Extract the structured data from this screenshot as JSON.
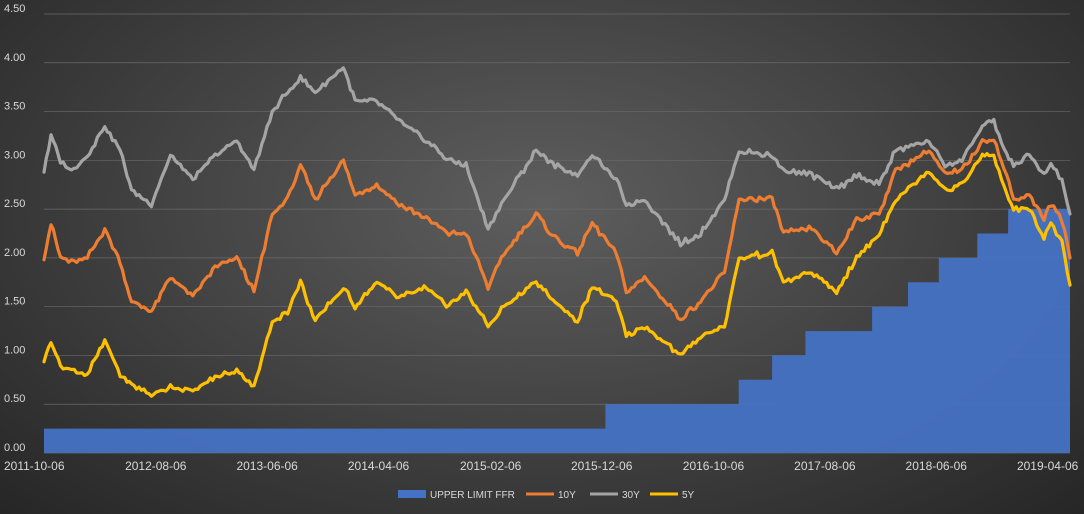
{
  "chart_data": {
    "type": "area+line",
    "title": "",
    "xlabel": "",
    "ylabel": "",
    "ylim": [
      0,
      4.5
    ],
    "yticks": [
      "0.00",
      "0.50",
      "1.00",
      "1.50",
      "2.00",
      "2.50",
      "3.00",
      "3.50",
      "4.00",
      "4.50"
    ],
    "xticks": [
      "2011-10-06",
      "2012-08-06",
      "2013-06-06",
      "2014-04-06",
      "2015-02-06",
      "2015-12-06",
      "2016-10-06",
      "2017-08-06",
      "2018-06-06",
      "2019-04-06"
    ],
    "x_start": "2011-10-06",
    "x_end": "2019-06-06",
    "grid": true,
    "legend_position": "bottom",
    "colors": {
      "ffr": "#4472c4",
      "y10": "#ed7d31",
      "y30": "#a5a5a5",
      "y5": "#ffc000",
      "text": "#d9d9d9",
      "grid": "#6a6a6a"
    },
    "series": [
      {
        "name": "UPPER LIMIT FFR",
        "type": "area",
        "color": "#4472c4",
        "points": [
          [
            "2011-10-06",
            0.25
          ],
          [
            "2015-12-16",
            0.25
          ],
          [
            "2015-12-16",
            0.5
          ],
          [
            "2016-12-14",
            0.5
          ],
          [
            "2016-12-14",
            0.75
          ],
          [
            "2017-03-15",
            0.75
          ],
          [
            "2017-03-15",
            1.0
          ],
          [
            "2017-06-14",
            1.0
          ],
          [
            "2017-06-14",
            1.25
          ],
          [
            "2017-12-13",
            1.25
          ],
          [
            "2017-12-13",
            1.5
          ],
          [
            "2018-03-21",
            1.5
          ],
          [
            "2018-03-21",
            1.75
          ],
          [
            "2018-06-13",
            1.75
          ],
          [
            "2018-06-13",
            2.0
          ],
          [
            "2018-09-26",
            2.0
          ],
          [
            "2018-09-26",
            2.25
          ],
          [
            "2018-12-19",
            2.25
          ],
          [
            "2018-12-19",
            2.5
          ],
          [
            "2019-06-06",
            2.5
          ]
        ]
      },
      {
        "name": "10Y",
        "type": "line",
        "color": "#ed7d31",
        "points": [
          [
            "2011-10-06",
            2.0
          ],
          [
            "2011-10-25",
            2.35
          ],
          [
            "2011-11-20",
            2.0
          ],
          [
            "2011-12-20",
            1.95
          ],
          [
            "2012-02-01",
            2.0
          ],
          [
            "2012-03-20",
            2.3
          ],
          [
            "2012-05-01",
            1.95
          ],
          [
            "2012-06-01",
            1.55
          ],
          [
            "2012-07-25",
            1.45
          ],
          [
            "2012-09-15",
            1.8
          ],
          [
            "2012-11-15",
            1.6
          ],
          [
            "2013-01-15",
            1.9
          ],
          [
            "2013-03-15",
            2.0
          ],
          [
            "2013-05-01",
            1.65
          ],
          [
            "2013-06-20",
            2.45
          ],
          [
            "2013-08-01",
            2.6
          ],
          [
            "2013-09-05",
            2.95
          ],
          [
            "2013-10-15",
            2.6
          ],
          [
            "2013-12-31",
            3.0
          ],
          [
            "2014-02-01",
            2.65
          ],
          [
            "2014-04-01",
            2.75
          ],
          [
            "2014-06-01",
            2.55
          ],
          [
            "2014-08-15",
            2.4
          ],
          [
            "2014-10-15",
            2.25
          ],
          [
            "2014-12-01",
            2.25
          ],
          [
            "2015-01-30",
            1.7
          ],
          [
            "2015-03-15",
            2.05
          ],
          [
            "2015-06-10",
            2.45
          ],
          [
            "2015-08-01",
            2.2
          ],
          [
            "2015-10-01",
            2.05
          ],
          [
            "2015-11-10",
            2.35
          ],
          [
            "2016-01-15",
            2.05
          ],
          [
            "2016-02-11",
            1.65
          ],
          [
            "2016-04-01",
            1.8
          ],
          [
            "2016-07-08",
            1.38
          ],
          [
            "2016-09-01",
            1.55
          ],
          [
            "2016-11-05",
            1.85
          ],
          [
            "2016-12-15",
            2.6
          ],
          [
            "2017-03-15",
            2.6
          ],
          [
            "2017-04-15",
            2.25
          ],
          [
            "2017-07-01",
            2.3
          ],
          [
            "2017-09-07",
            2.05
          ],
          [
            "2017-11-01",
            2.4
          ],
          [
            "2018-01-01",
            2.45
          ],
          [
            "2018-02-15",
            2.9
          ],
          [
            "2018-05-17",
            3.1
          ],
          [
            "2018-06-30",
            2.85
          ],
          [
            "2018-08-15",
            2.9
          ],
          [
            "2018-10-10",
            3.2
          ],
          [
            "2018-11-10",
            3.22
          ],
          [
            "2018-12-15",
            2.85
          ],
          [
            "2019-01-03",
            2.6
          ],
          [
            "2019-02-15",
            2.65
          ],
          [
            "2019-03-27",
            2.4
          ],
          [
            "2019-04-15",
            2.55
          ],
          [
            "2019-05-15",
            2.4
          ],
          [
            "2019-06-06",
            2.0
          ]
        ]
      },
      {
        "name": "30Y",
        "type": "line",
        "color": "#a5a5a5",
        "points": [
          [
            "2011-10-06",
            2.9
          ],
          [
            "2011-10-25",
            3.25
          ],
          [
            "2011-11-20",
            3.0
          ],
          [
            "2011-12-20",
            2.9
          ],
          [
            "2012-02-01",
            3.05
          ],
          [
            "2012-03-20",
            3.35
          ],
          [
            "2012-05-01",
            3.1
          ],
          [
            "2012-06-01",
            2.7
          ],
          [
            "2012-07-25",
            2.55
          ],
          [
            "2012-09-15",
            3.05
          ],
          [
            "2012-11-15",
            2.8
          ],
          [
            "2013-01-15",
            3.05
          ],
          [
            "2013-03-15",
            3.2
          ],
          [
            "2013-05-01",
            2.9
          ],
          [
            "2013-06-20",
            3.5
          ],
          [
            "2013-08-01",
            3.7
          ],
          [
            "2013-09-05",
            3.85
          ],
          [
            "2013-10-15",
            3.7
          ],
          [
            "2013-12-31",
            3.95
          ],
          [
            "2014-02-01",
            3.6
          ],
          [
            "2014-04-01",
            3.6
          ],
          [
            "2014-06-01",
            3.4
          ],
          [
            "2014-08-15",
            3.2
          ],
          [
            "2014-10-15",
            3.0
          ],
          [
            "2014-12-01",
            2.95
          ],
          [
            "2015-01-30",
            2.3
          ],
          [
            "2015-03-15",
            2.6
          ],
          [
            "2015-06-10",
            3.1
          ],
          [
            "2015-08-01",
            2.95
          ],
          [
            "2015-10-01",
            2.85
          ],
          [
            "2015-11-10",
            3.05
          ],
          [
            "2016-01-15",
            2.8
          ],
          [
            "2016-02-11",
            2.55
          ],
          [
            "2016-04-01",
            2.6
          ],
          [
            "2016-07-08",
            2.15
          ],
          [
            "2016-09-01",
            2.25
          ],
          [
            "2016-11-05",
            2.6
          ],
          [
            "2016-12-15",
            3.1
          ],
          [
            "2017-03-15",
            3.05
          ],
          [
            "2017-04-15",
            2.9
          ],
          [
            "2017-07-01",
            2.85
          ],
          [
            "2017-09-07",
            2.7
          ],
          [
            "2017-11-01",
            2.85
          ],
          [
            "2018-01-01",
            2.75
          ],
          [
            "2018-02-15",
            3.1
          ],
          [
            "2018-05-17",
            3.2
          ],
          [
            "2018-06-30",
            2.95
          ],
          [
            "2018-08-15",
            3.0
          ],
          [
            "2018-10-10",
            3.35
          ],
          [
            "2018-11-10",
            3.4
          ],
          [
            "2018-12-15",
            3.05
          ],
          [
            "2019-01-03",
            2.95
          ],
          [
            "2019-02-15",
            3.05
          ],
          [
            "2019-03-27",
            2.85
          ],
          [
            "2019-04-15",
            2.95
          ],
          [
            "2019-05-15",
            2.8
          ],
          [
            "2019-06-06",
            2.45
          ]
        ]
      },
      {
        "name": "5Y",
        "type": "line",
        "color": "#ffc000",
        "points": [
          [
            "2011-10-06",
            0.95
          ],
          [
            "2011-10-25",
            1.15
          ],
          [
            "2011-11-20",
            0.9
          ],
          [
            "2011-12-20",
            0.85
          ],
          [
            "2012-02-01",
            0.8
          ],
          [
            "2012-03-20",
            1.15
          ],
          [
            "2012-05-01",
            0.8
          ],
          [
            "2012-06-01",
            0.7
          ],
          [
            "2012-07-25",
            0.6
          ],
          [
            "2012-09-15",
            0.68
          ],
          [
            "2012-11-15",
            0.63
          ],
          [
            "2013-01-15",
            0.78
          ],
          [
            "2013-03-15",
            0.85
          ],
          [
            "2013-05-01",
            0.68
          ],
          [
            "2013-06-20",
            1.35
          ],
          [
            "2013-08-01",
            1.45
          ],
          [
            "2013-09-05",
            1.75
          ],
          [
            "2013-10-15",
            1.35
          ],
          [
            "2013-12-31",
            1.7
          ],
          [
            "2014-02-01",
            1.5
          ],
          [
            "2014-04-01",
            1.75
          ],
          [
            "2014-06-01",
            1.6
          ],
          [
            "2014-08-15",
            1.7
          ],
          [
            "2014-10-15",
            1.5
          ],
          [
            "2014-12-01",
            1.65
          ],
          [
            "2015-01-30",
            1.3
          ],
          [
            "2015-03-15",
            1.5
          ],
          [
            "2015-06-10",
            1.75
          ],
          [
            "2015-08-01",
            1.55
          ],
          [
            "2015-10-01",
            1.35
          ],
          [
            "2015-11-10",
            1.7
          ],
          [
            "2016-01-15",
            1.55
          ],
          [
            "2016-02-11",
            1.2
          ],
          [
            "2016-04-01",
            1.3
          ],
          [
            "2016-07-08",
            1.0
          ],
          [
            "2016-09-01",
            1.2
          ],
          [
            "2016-11-05",
            1.3
          ],
          [
            "2016-12-15",
            2.0
          ],
          [
            "2017-03-15",
            2.05
          ],
          [
            "2017-04-15",
            1.75
          ],
          [
            "2017-07-01",
            1.85
          ],
          [
            "2017-09-07",
            1.65
          ],
          [
            "2017-11-01",
            2.0
          ],
          [
            "2018-01-01",
            2.25
          ],
          [
            "2018-02-15",
            2.6
          ],
          [
            "2018-05-17",
            2.9
          ],
          [
            "2018-06-30",
            2.7
          ],
          [
            "2018-08-15",
            2.75
          ],
          [
            "2018-10-10",
            3.05
          ],
          [
            "2018-11-10",
            3.05
          ],
          [
            "2018-12-15",
            2.65
          ],
          [
            "2019-01-03",
            2.5
          ],
          [
            "2019-02-15",
            2.5
          ],
          [
            "2019-03-27",
            2.2
          ],
          [
            "2019-04-15",
            2.35
          ],
          [
            "2019-05-15",
            2.15
          ],
          [
            "2019-06-06",
            1.72
          ]
        ]
      }
    ],
    "legend": [
      "UPPER LIMIT FFR",
      "10Y",
      "30Y",
      "5Y"
    ]
  }
}
